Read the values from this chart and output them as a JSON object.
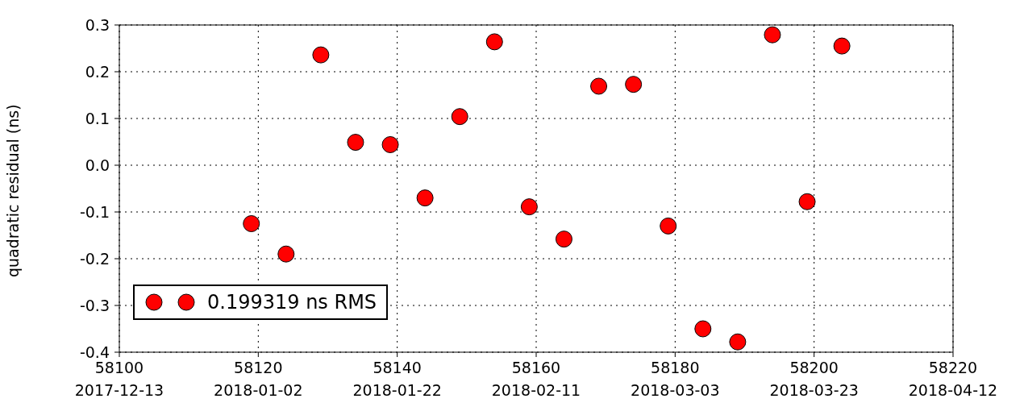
{
  "chart_data": {
    "type": "scatter",
    "ylabel": "quadratic residual (ns)",
    "x": [
      58119,
      58124,
      58129,
      58134,
      58139,
      58144,
      58149,
      58154,
      58159,
      58164,
      58169,
      58174,
      58179,
      58184,
      58189,
      58194,
      58199,
      58204
    ],
    "series": [
      {
        "name": "0.199319 ns RMS",
        "color": "#ff0000",
        "values": [
          -0.125,
          -0.19,
          0.236,
          0.049,
          0.044,
          -0.07,
          0.104,
          0.264,
          -0.089,
          -0.158,
          0.169,
          0.173,
          -0.13,
          -0.35,
          -0.378,
          0.279,
          -0.078,
          0.255
        ]
      }
    ],
    "xlim": [
      58100,
      58220
    ],
    "xticks": [
      58100,
      58120,
      58140,
      58160,
      58180,
      58200,
      58220
    ],
    "x2lim": [
      "2017-12-13",
      "2018-04-12"
    ],
    "x2ticks": [
      "2017-12-13",
      "2018-01-02",
      "2018-01-22",
      "2018-02-11",
      "2018-03-03",
      "2018-03-23",
      "2018-04-12"
    ],
    "ylim": [
      -0.4,
      0.3
    ],
    "yticks": [
      -0.4,
      -0.3,
      -0.2,
      -0.1,
      {
        "value": 0,
        "label": "0.0"
      },
      0.1,
      0.2,
      0.3
    ],
    "grid": true,
    "legend": "bottom left",
    "marker": "circle"
  }
}
